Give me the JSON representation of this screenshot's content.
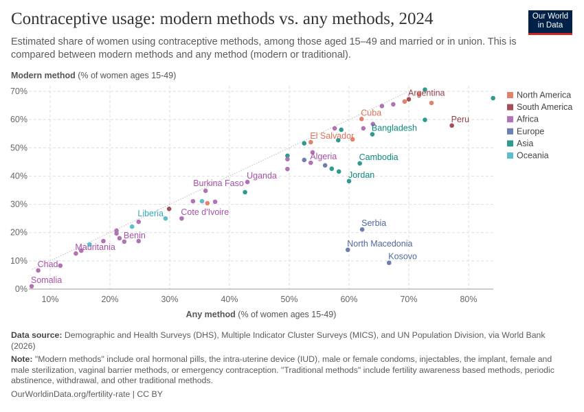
{
  "header": {
    "title": "Contraceptive usage: modern methods vs. any methods, 2024",
    "subtitle": "Estimated share of women using contraceptive methods, among those aged 15–49 and married or in union. This is compared between modern methods and any method (modern or traditional).",
    "logo_text": "Our World in Data"
  },
  "footer": {
    "source_label": "Data source:",
    "source_text": "Demographic and Health Surveys (DHS), Multiple Indicator Cluster Surveys (MICS), and UN Population Division, via World Bank (2026)",
    "note_label": "Note:",
    "note_text": "\"Modern methods\" include oral hormonal pills, the intra-uterine device (IUD), male or female condoms, injectables, the implant, female and male sterilization, vaginal barrier methods, or emergency contraception. \"Traditional methods\" include fertility awareness based methods, periodic abstinence, withdrawal, and other traditional methods.",
    "url": "OurWorldinData.org/fertility-rate | CC BY"
  },
  "chart_data": {
    "type": "scatter",
    "xlabel_bold": "Any method",
    "xlabel_rest": " (% of women ages 15-49)",
    "ylabel_bold": "Modern method",
    "ylabel_rest": " (% of women ages 15-49)",
    "xlim": [
      6.5,
      84.5
    ],
    "ylim": [
      0,
      70
    ],
    "x_ticks": [
      10,
      20,
      30,
      40,
      50,
      60,
      70,
      80
    ],
    "y_ticks": [
      0,
      10,
      20,
      30,
      40,
      50,
      60,
      70
    ],
    "tick_format": "%",
    "grid": true,
    "reference_line": "y = x (dotted)",
    "legend_position": "right",
    "legend": [
      {
        "name": "North America",
        "color": "#e0826c"
      },
      {
        "name": "South America",
        "color": "#a24f59"
      },
      {
        "name": "Africa",
        "color": "#b173b3"
      },
      {
        "name": "Europe",
        "color": "#6b80ae"
      },
      {
        "name": "Asia",
        "color": "#2e9b8f"
      },
      {
        "name": "Oceania",
        "color": "#5ebdcb"
      }
    ],
    "label_colors": {
      "North America": "#e0705c",
      "South America": "#9a3f4a",
      "Africa": "#a651a6",
      "Europe": "#4c6a9c",
      "Asia": "#0b8a7f",
      "Oceania": "#38aaba"
    },
    "points": [
      {
        "x": 6.9,
        "y": 1.0,
        "region": "Africa",
        "label": "Somalia"
      },
      {
        "x": 8.0,
        "y": 6.6,
        "region": "Africa",
        "label": "Chad"
      },
      {
        "x": 11.7,
        "y": 8.3,
        "region": "Africa"
      },
      {
        "x": 14.3,
        "y": 12.6,
        "region": "Africa",
        "label": "Mauritania"
      },
      {
        "x": 15.2,
        "y": 13.6,
        "region": "Africa"
      },
      {
        "x": 16.6,
        "y": 15.8,
        "region": "Oceania"
      },
      {
        "x": 18.9,
        "y": 17.0,
        "region": "Africa"
      },
      {
        "x": 21.1,
        "y": 20.7,
        "region": "Africa"
      },
      {
        "x": 21.1,
        "y": 19.7,
        "region": "Africa"
      },
      {
        "x": 21.6,
        "y": 18.0,
        "region": "Africa"
      },
      {
        "x": 22.4,
        "y": 16.8,
        "region": "Africa",
        "label": "Benin"
      },
      {
        "x": 23.7,
        "y": 22.1,
        "region": "Oceania"
      },
      {
        "x": 24.8,
        "y": 23.8,
        "region": "Africa"
      },
      {
        "x": 24.8,
        "y": 17.0,
        "region": "Africa"
      },
      {
        "x": 29.3,
        "y": 25.0,
        "region": "Oceania",
        "label": "Liberia"
      },
      {
        "x": 29.9,
        "y": 28.4,
        "region": "South America"
      },
      {
        "x": 32.0,
        "y": 25.0,
        "region": "Africa",
        "label": "Cote d'Ivoire"
      },
      {
        "x": 33.9,
        "y": 31.1,
        "region": "Africa"
      },
      {
        "x": 35.4,
        "y": 31.1,
        "region": "Oceania"
      },
      {
        "x": 36.3,
        "y": 30.4,
        "region": "North America"
      },
      {
        "x": 37.6,
        "y": 30.9,
        "region": "Africa"
      },
      {
        "x": 36.0,
        "y": 34.8,
        "region": "Africa",
        "label": "Burkina Faso"
      },
      {
        "x": 42.6,
        "y": 34.3,
        "region": "Asia"
      },
      {
        "x": 43.0,
        "y": 37.9,
        "region": "Africa",
        "label": "Uganda"
      },
      {
        "x": 49.7,
        "y": 47.2,
        "region": "Asia"
      },
      {
        "x": 49.7,
        "y": 46.0,
        "region": "Africa"
      },
      {
        "x": 49.7,
        "y": 42.5,
        "region": "Africa"
      },
      {
        "x": 52.5,
        "y": 51.6,
        "region": "Asia"
      },
      {
        "x": 53.6,
        "y": 52.0,
        "region": "North America",
        "label": "El Salvador"
      },
      {
        "x": 53.9,
        "y": 48.4,
        "region": "Africa"
      },
      {
        "x": 53.6,
        "y": 44.7,
        "region": "Africa",
        "label": "Algeria"
      },
      {
        "x": 52.5,
        "y": 45.7,
        "region": "Europe"
      },
      {
        "x": 56.0,
        "y": 43.8,
        "region": "Europe"
      },
      {
        "x": 57.1,
        "y": 42.6,
        "region": "Asia"
      },
      {
        "x": 58.3,
        "y": 41.6,
        "region": "Asia"
      },
      {
        "x": 57.6,
        "y": 56.9,
        "region": "Africa"
      },
      {
        "x": 58.7,
        "y": 56.4,
        "region": "Asia"
      },
      {
        "x": 58.2,
        "y": 52.7,
        "region": "Asia"
      },
      {
        "x": 60.6,
        "y": 53.0,
        "region": "North America"
      },
      {
        "x": 62.1,
        "y": 60.2,
        "region": "North America",
        "label": "Cuba"
      },
      {
        "x": 62.4,
        "y": 56.9,
        "region": "Africa"
      },
      {
        "x": 64.0,
        "y": 58.4,
        "region": "Africa"
      },
      {
        "x": 63.9,
        "y": 54.8,
        "region": "Asia",
        "label": "Bangladesh"
      },
      {
        "x": 61.8,
        "y": 44.5,
        "region": "Asia",
        "label": "Cambodia"
      },
      {
        "x": 60.0,
        "y": 38.2,
        "region": "Asia",
        "label": "Jordan"
      },
      {
        "x": 65.5,
        "y": 64.8,
        "region": "Africa"
      },
      {
        "x": 67.4,
        "y": 65.4,
        "region": "Africa"
      },
      {
        "x": 69.3,
        "y": 66.4,
        "region": "North America"
      },
      {
        "x": 70.0,
        "y": 67.2,
        "region": "South America",
        "label": "Argentina"
      },
      {
        "x": 71.7,
        "y": 69.0,
        "region": "North America"
      },
      {
        "x": 72.7,
        "y": 70.6,
        "region": "Asia"
      },
      {
        "x": 73.8,
        "y": 65.9,
        "region": "North America"
      },
      {
        "x": 72.7,
        "y": 59.9,
        "region": "Asia"
      },
      {
        "x": 77.2,
        "y": 57.9,
        "region": "South America",
        "label": "Peru"
      },
      {
        "x": 84.1,
        "y": 67.6,
        "region": "Asia"
      },
      {
        "x": 62.2,
        "y": 21.1,
        "region": "Europe",
        "label": "Serbia"
      },
      {
        "x": 59.8,
        "y": 13.9,
        "region": "Europe",
        "label": "North Macedonia"
      },
      {
        "x": 66.7,
        "y": 9.3,
        "region": "Europe",
        "label": "Kosovo"
      }
    ]
  }
}
